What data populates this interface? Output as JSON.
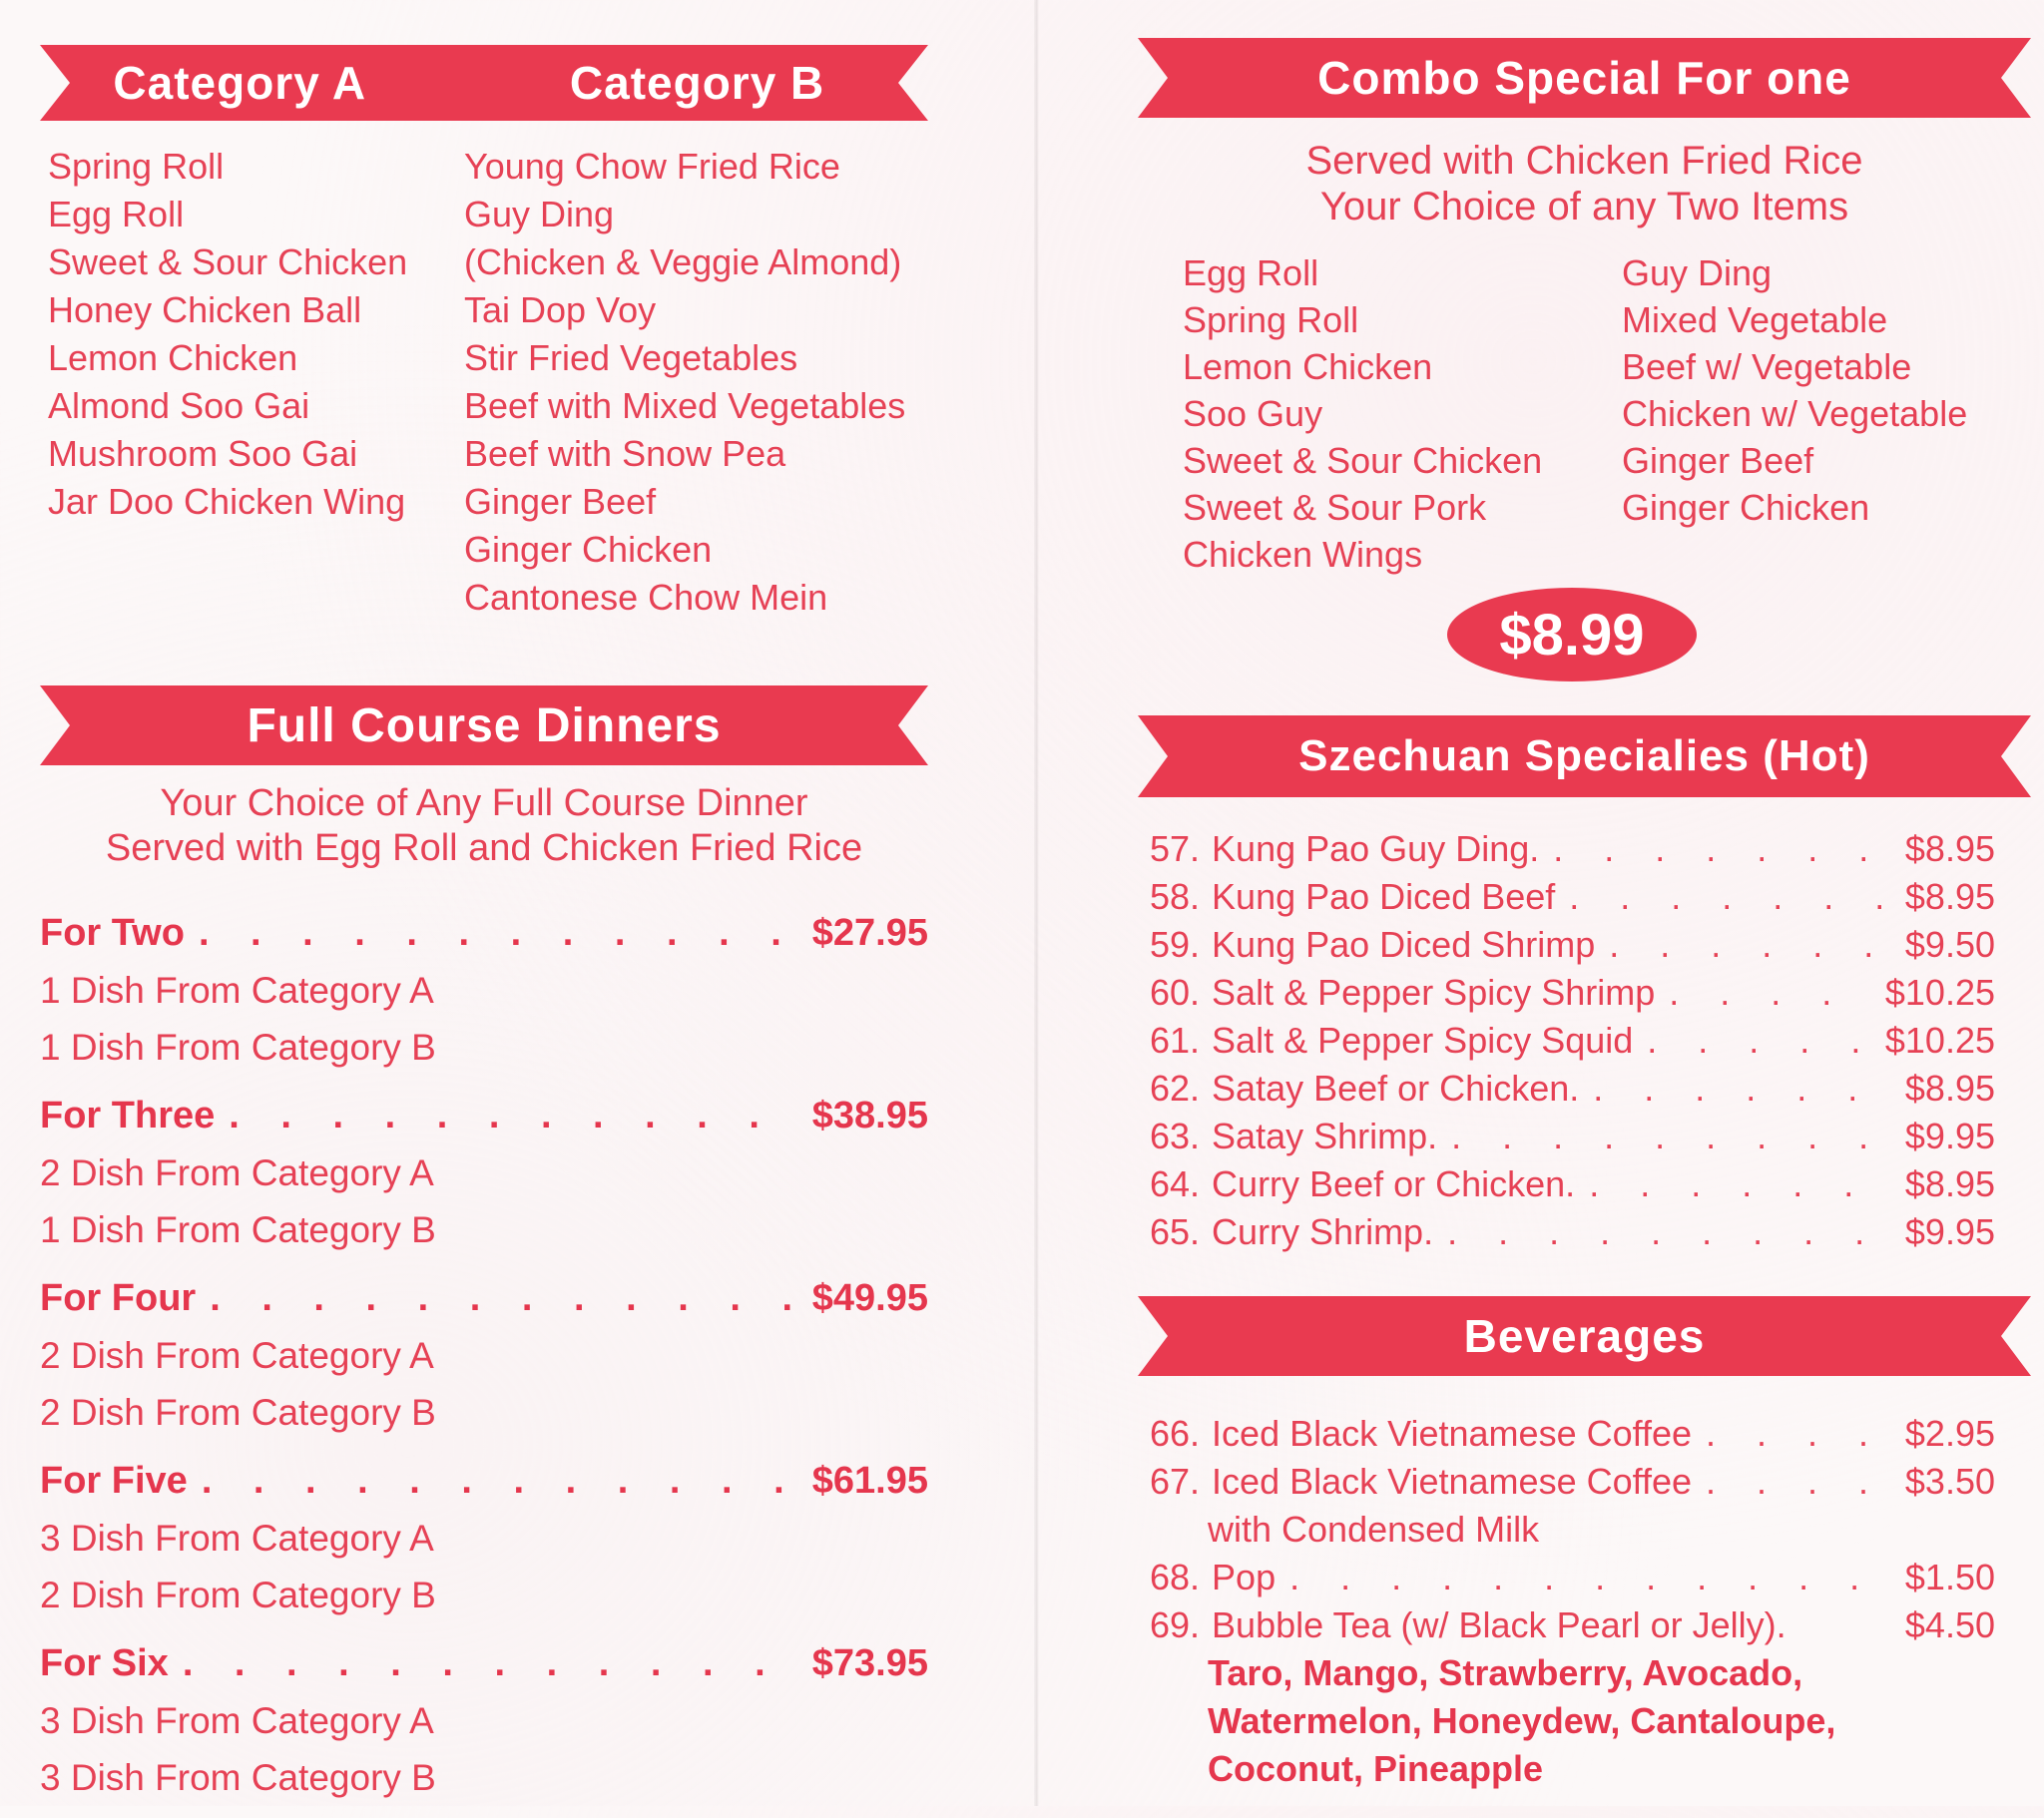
{
  "colors": {
    "ribbon_red": "#e93a50",
    "text_red": "#e64155",
    "paper": "#fcf8f8"
  },
  "left": {
    "category_banner": {
      "a": "Category A",
      "b": "Category B"
    },
    "category_a_items": [
      "Spring Roll",
      "Egg Roll",
      "Sweet & Sour Chicken",
      "Honey Chicken Ball",
      "Lemon Chicken",
      "Almond Soo Gai",
      "Mushroom Soo Gai",
      "Jar Doo Chicken Wing"
    ],
    "category_b_items": [
      "Young Chow Fried Rice",
      "Guy Ding",
      "(Chicken & Veggie Almond)",
      "Tai Dop Voy",
      "Stir Fried Vegetables",
      "Beef with Mixed Vegetables",
      "Beef with Snow Pea",
      "Ginger Beef",
      "Ginger Chicken",
      "Cantonese Chow Mein"
    ],
    "full_course": {
      "title": "Full Course Dinners",
      "subtitle_line1": "Your Choice of Any Full Course Dinner",
      "subtitle_line2": "Served with Egg Roll and Chicken Fried Rice",
      "options": [
        {
          "label": "For Two",
          "price": "$27.95",
          "details": [
            "1 Dish From Category A",
            "1 Dish From Category B"
          ]
        },
        {
          "label": "For Three",
          "price": "$38.95",
          "details": [
            "2 Dish From Category A",
            "1 Dish From Category B"
          ]
        },
        {
          "label": "For Four",
          "price": "$49.95",
          "details": [
            "2 Dish From Category A",
            "2 Dish From Category B"
          ]
        },
        {
          "label": "For Five",
          "price": "$61.95",
          "details": [
            "3 Dish From Category A",
            "2 Dish From Category B"
          ]
        },
        {
          "label": "For Six",
          "price": "$73.95",
          "details": [
            "3 Dish From Category A",
            "3 Dish From Category B"
          ]
        }
      ]
    }
  },
  "right": {
    "combo": {
      "title": "Combo Special For one",
      "subtitle_line1": "Served with Chicken Fried Rice",
      "subtitle_line2": "Your Choice of any Two Items",
      "items_left": [
        "Egg Roll",
        "Spring Roll",
        "Lemon Chicken",
        "Soo Guy",
        "Sweet & Sour Chicken",
        "Sweet & Sour Pork",
        "Chicken Wings"
      ],
      "items_right": [
        "Guy Ding",
        "Mixed Vegetable",
        "Beef w/ Vegetable",
        "Chicken w/ Vegetable",
        "Ginger Beef",
        "Ginger Chicken"
      ],
      "price_badge": "$8.99"
    },
    "szechuan": {
      "title": "Szechuan Specialies (Hot)",
      "items": [
        {
          "num": "57.",
          "name": "Kung Pao Guy Ding.",
          "price": "$8.95"
        },
        {
          "num": "58.",
          "name": "Kung Pao Diced Beef",
          "price": "$8.95"
        },
        {
          "num": "59.",
          "name": "Kung Pao Diced Shrimp",
          "price": "$9.50"
        },
        {
          "num": "60.",
          "name": "Salt & Pepper Spicy Shrimp",
          "price": "$10.25"
        },
        {
          "num": "61.",
          "name": "Salt & Pepper Spicy Squid",
          "price": "$10.25"
        },
        {
          "num": "62.",
          "name": "Satay Beef or Chicken.",
          "price": "$8.95"
        },
        {
          "num": "63.",
          "name": "Satay Shrimp.",
          "price": "$9.95"
        },
        {
          "num": "64.",
          "name": "Curry Beef or Chicken.",
          "price": "$8.95"
        },
        {
          "num": "65.",
          "name": "Curry Shrimp.",
          "price": "$9.95"
        }
      ]
    },
    "beverages": {
      "title": "Beverages",
      "items": [
        {
          "num": "66.",
          "name": "Iced Black Vietnamese Coffee",
          "price": "$2.95"
        },
        {
          "num": "67.",
          "name": "Iced Black Vietnamese Coffee",
          "price": "$3.50",
          "sub": "with Condensed Milk"
        },
        {
          "num": "68.",
          "name": "Pop",
          "price": "$1.50"
        },
        {
          "num": "69.",
          "name": "Bubble Tea (w/ Black Pearl or Jelly).",
          "price": "$4.50"
        }
      ],
      "flavor_lines": [
        "Taro, Mango, Strawberry, Avocado,",
        "Watermelon, Honeydew, Cantaloupe,",
        "Coconut, Pineapple"
      ]
    }
  }
}
